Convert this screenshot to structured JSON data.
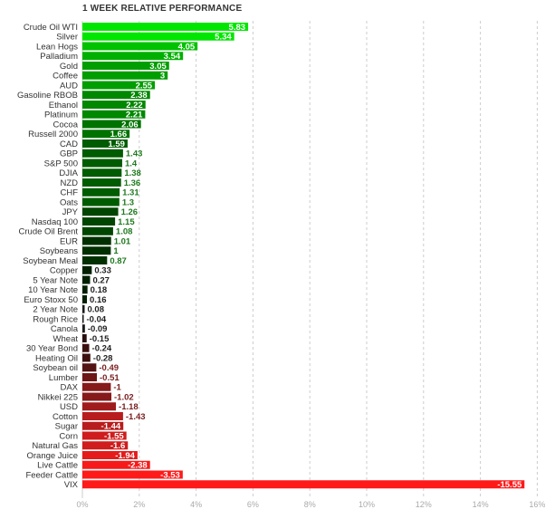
{
  "chart_data": {
    "type": "bar",
    "orientation": "horizontal",
    "title": "1 WEEK RELATIVE PERFORMANCE",
    "xlim": [
      0,
      16
    ],
    "x_ticks": [
      "0%",
      "2%",
      "4%",
      "6%",
      "8%",
      "10%",
      "12%",
      "14%",
      "16%"
    ],
    "grid": "vertical dashed",
    "categories": [
      "Crude Oil WTI",
      "Silver",
      "Lean Hogs",
      "Palladium",
      "Gold",
      "Coffee",
      "AUD",
      "Gasoline RBOB",
      "Ethanol",
      "Platinum",
      "Cocoa",
      "Russell 2000",
      "CAD",
      "GBP",
      "S&P 500",
      "DJIA",
      "NZD",
      "CHF",
      "Oats",
      "JPY",
      "Nasdaq 100",
      "Crude Oil Brent",
      "EUR",
      "Soybeans",
      "Soybean Meal",
      "Copper",
      "5 Year Note",
      "10 Year Note",
      "Euro Stoxx 50",
      "2 Year Note",
      "Rough Rice",
      "Canola",
      "Wheat",
      "30 Year Bond",
      "Heating Oil",
      "Soybean oil",
      "Lumber",
      "DAX",
      "Nikkei 225",
      "USD",
      "Cotton",
      "Sugar",
      "Corn",
      "Natural Gas",
      "Orange Juice",
      "Live Cattle",
      "Feeder Cattle",
      "VIX"
    ],
    "values": [
      5.83,
      5.34,
      4.05,
      3.54,
      3.05,
      3,
      2.55,
      2.38,
      2.22,
      2.21,
      2.06,
      1.66,
      1.59,
      1.43,
      1.4,
      1.38,
      1.36,
      1.31,
      1.3,
      1.26,
      1.15,
      1.08,
      1.01,
      1,
      0.87,
      0.33,
      0.27,
      0.18,
      0.16,
      0.08,
      -0.04,
      -0.09,
      -0.15,
      -0.24,
      -0.28,
      -0.49,
      -0.51,
      -1,
      -1.02,
      -1.18,
      -1.43,
      -1.44,
      -1.55,
      -1.6,
      -1.94,
      -2.38,
      -3.53,
      -15.55
    ],
    "value_labels": [
      "5.83",
      "5.34",
      "4.05",
      "3.54",
      "3.05",
      "3",
      "2.55",
      "2.38",
      "2.22",
      "2.21",
      "2.06",
      "1.66",
      "1.59",
      "1.43",
      "1.4",
      "1.38",
      "1.36",
      "1.31",
      "1.3",
      "1.26",
      "1.15",
      "1.08",
      "1.01",
      "1",
      "0.87",
      "0.33",
      "0.27",
      "0.18",
      "0.16",
      "0.08",
      "-0.04",
      "-0.09",
      "-0.15",
      "-0.24",
      "-0.28",
      "-0.49",
      "-0.51",
      "-1",
      "-1.02",
      "-1.18",
      "-1.43",
      "-1.44",
      "-1.55",
      "-1.6",
      "-1.94",
      "-2.38",
      "-3.53",
      "-15.55"
    ],
    "colors": {
      "positive": [
        "#00e600",
        "#00d400",
        "#00c200",
        "#00b000",
        "#009e00",
        "#008800",
        "#007200",
        "#005c00",
        "#004600",
        "#003000",
        "#002000",
        "#1a1a1a"
      ],
      "negative": [
        "#1a1a1a",
        "#2a0d0d",
        "#3d1010",
        "#541414",
        "#6d1717",
        "#861a1a",
        "#a01c1c",
        "#b81d1d",
        "#cf1c1c",
        "#e51b1b",
        "#f71a1a",
        "#ff1a1a"
      ],
      "grid": "#cccccc",
      "axis_label": "#aaaaaa",
      "category_label": "#333333",
      "value_label_inside": "#ffffff",
      "value_label_outside_positive": "#1f7a1f",
      "value_label_outside_negative": "#7a1f1f"
    }
  }
}
